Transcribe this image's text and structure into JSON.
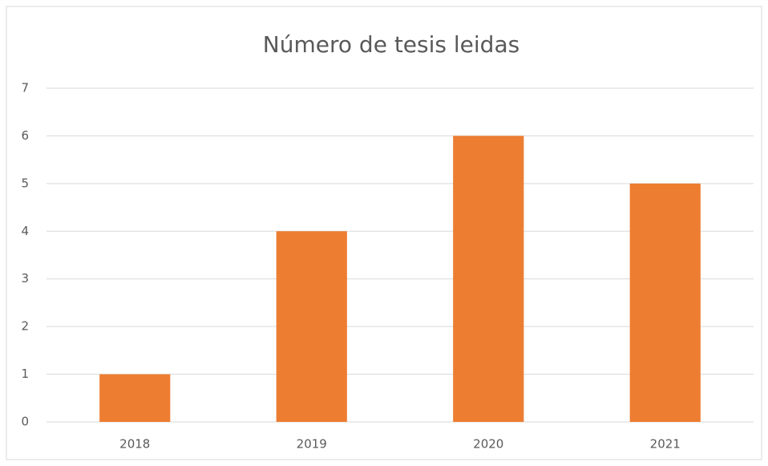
{
  "chart_data": {
    "type": "bar",
    "title": "Número de tesis leidas",
    "categories": [
      "2018",
      "2019",
      "2020",
      "2021"
    ],
    "values": [
      1,
      4,
      6,
      5
    ],
    "color": "#ed7d31",
    "ylim": [
      0,
      7
    ],
    "yticks": [
      0,
      1,
      2,
      3,
      4,
      5,
      6,
      7
    ],
    "grid": true
  }
}
